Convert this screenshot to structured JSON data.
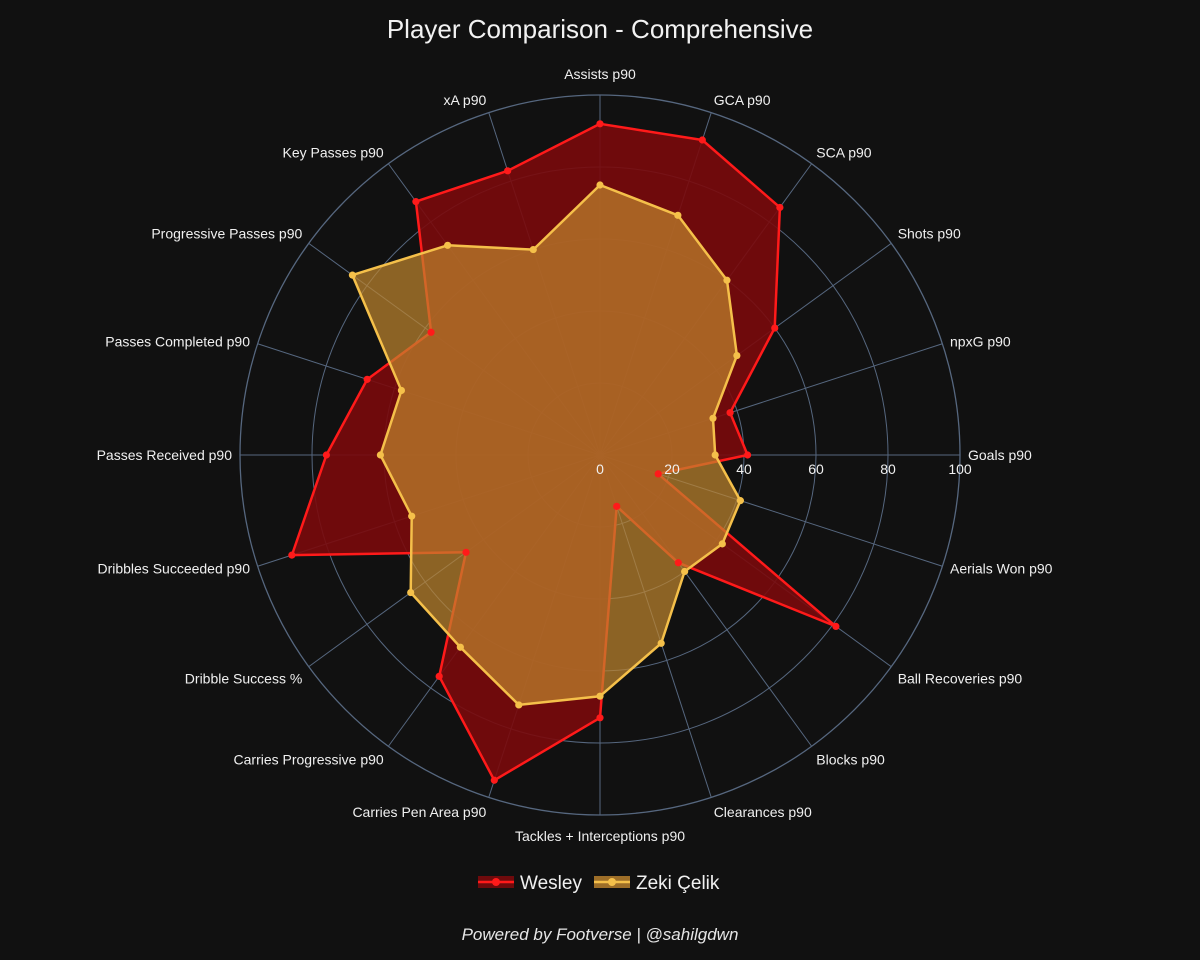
{
  "chart_data": {
    "type": "radar",
    "title": "Player Comparison - Comprehensive",
    "radial_range": [
      0,
      100
    ],
    "radial_ticks": [
      0,
      20,
      40,
      60,
      80,
      100
    ],
    "categories": [
      "Goals p90",
      "npxG p90",
      "Shots p90",
      "SCA p90",
      "GCA p90",
      "Assists p90",
      "xA p90",
      "Key Passes p90",
      "Progressive Passes p90",
      "Passes Completed p90",
      "Passes Received p90",
      "Dribbles Succeeded p90",
      "Dribble Success %",
      "Carries Progressive p90",
      "Carries Pen Area p90",
      "Tackles + Interceptions p90",
      "Clearances p90",
      "Blocks p90",
      "Ball Recoveries p90",
      "Aerials Won p90"
    ],
    "series": [
      {
        "name": "Wesley",
        "color": "#ff1a1a",
        "fill": "#7a0a0c",
        "values": [
          41,
          38,
          60,
          85,
          92,
          92,
          83,
          87,
          58,
          68,
          76,
          90,
          46,
          76,
          95,
          73,
          15,
          37,
          81,
          17
        ]
      },
      {
        "name": "Zeki Çelik",
        "color": "#f5c04a",
        "fill": "#c0862e",
        "values": [
          32,
          33,
          47,
          60,
          70,
          75,
          60,
          72,
          85,
          58,
          61,
          55,
          65,
          66,
          73,
          67,
          55,
          40,
          42,
          41
        ]
      }
    ],
    "legend_position": "bottom-center",
    "grid": true
  },
  "footer": {
    "credit": "Powered by Footverse | @sahilgdwn"
  }
}
